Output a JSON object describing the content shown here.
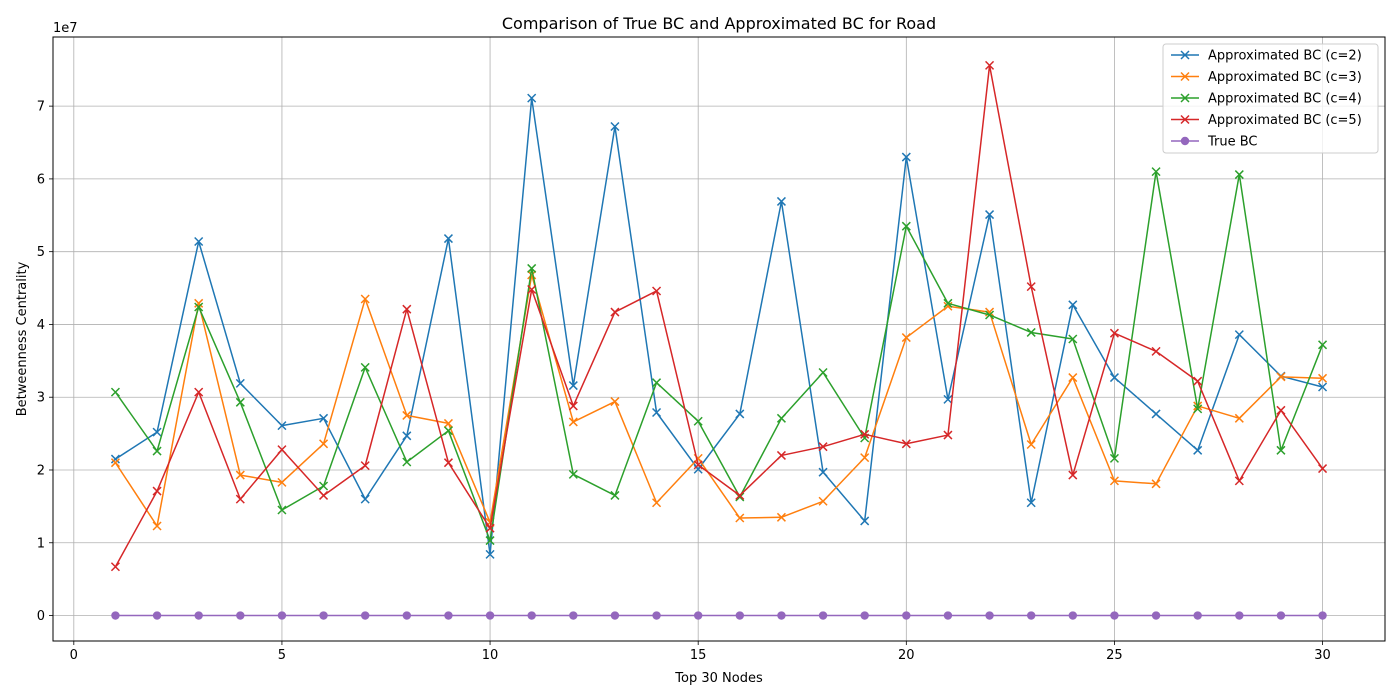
{
  "chart_data": {
    "type": "line",
    "title": "Comparison of True BC and Approximated BC for Road",
    "xlabel": "Top 30 Nodes",
    "ylabel": "Betweenness Centrality",
    "y_offset_label": "1e7",
    "y_scale": 10000000,
    "xlim": [
      -0.5,
      31.5
    ],
    "ylim": [
      -0.35,
      7.95
    ],
    "x_ticks": [
      0,
      5,
      10,
      15,
      20,
      25,
      30
    ],
    "y_ticks": [
      0,
      1,
      2,
      3,
      4,
      5,
      6,
      7
    ],
    "grid": true,
    "legend_position": "top-right",
    "x": [
      1,
      2,
      3,
      4,
      5,
      6,
      7,
      8,
      9,
      10,
      11,
      12,
      13,
      14,
      15,
      16,
      17,
      18,
      19,
      20,
      21,
      22,
      23,
      24,
      25,
      26,
      27,
      28,
      29,
      30
    ],
    "series": [
      {
        "name": "Approximated BC (c=2)",
        "color": "#1f77b4",
        "marker": "x",
        "values": [
          2.15,
          2.52,
          5.14,
          3.19,
          2.61,
          2.71,
          1.6,
          2.47,
          5.18,
          0.84,
          7.11,
          3.16,
          6.72,
          2.79,
          2.01,
          2.77,
          5.69,
          1.97,
          1.3,
          6.3,
          2.97,
          5.51,
          1.55,
          4.27,
          3.27,
          2.77,
          2.27,
          3.86,
          3.29,
          3.14
        ]
      },
      {
        "name": "Approximated BC (c=3)",
        "color": "#ff7f0e",
        "marker": "x",
        "values": [
          2.1,
          1.23,
          4.29,
          1.93,
          1.83,
          2.36,
          4.35,
          2.75,
          2.64,
          1.28,
          4.68,
          2.66,
          2.94,
          1.55,
          2.16,
          1.34,
          1.35,
          1.57,
          2.17,
          3.82,
          4.25,
          4.17,
          2.35,
          3.27,
          1.85,
          1.81,
          2.88,
          2.71,
          3.28,
          3.26
        ]
      },
      {
        "name": "Approximated BC (c=4)",
        "color": "#2ca02c",
        "marker": "x",
        "values": [
          3.07,
          2.26,
          4.24,
          2.93,
          1.45,
          1.78,
          3.41,
          2.11,
          2.54,
          1.03,
          4.77,
          1.94,
          1.65,
          3.2,
          2.67,
          1.63,
          2.71,
          3.34,
          2.44,
          5.35,
          4.29,
          4.13,
          3.89,
          3.8,
          2.16,
          6.1,
          2.84,
          6.06,
          2.27,
          3.72
        ]
      },
      {
        "name": "Approximated BC (c=5)",
        "color": "#d62728",
        "marker": "x",
        "values": [
          0.67,
          1.71,
          3.07,
          1.6,
          2.28,
          1.65,
          2.06,
          4.21,
          2.1,
          1.2,
          4.48,
          2.88,
          4.17,
          4.46,
          2.07,
          1.65,
          2.2,
          2.32,
          2.49,
          2.36,
          2.48,
          7.56,
          4.52,
          1.93,
          3.88,
          3.63,
          3.22,
          1.85,
          2.82,
          2.02
        ]
      },
      {
        "name": "True BC",
        "color": "#9467bd",
        "marker": "o",
        "values": [
          0,
          0,
          0,
          0,
          0,
          0,
          0,
          0,
          0,
          0,
          0,
          0,
          0,
          0,
          0,
          0,
          0,
          0,
          0,
          0,
          0,
          0,
          0,
          0,
          0,
          0,
          0,
          0,
          0,
          0
        ]
      }
    ]
  }
}
